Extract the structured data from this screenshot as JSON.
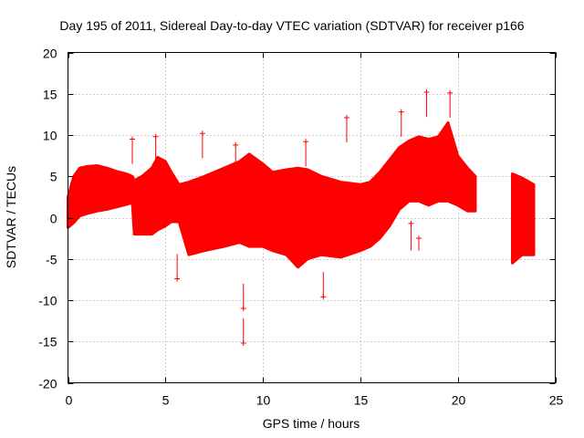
{
  "chart_data": {
    "type": "scatter",
    "title": "Day 195 of 2011, Sidereal Day-to-day VTEC variation (SDTVAR) for receiver p166",
    "xlabel": "GPS time / hours",
    "ylabel": "SDTVAR / TECUs",
    "xlim": [
      0,
      25
    ],
    "ylim": [
      -20,
      20
    ],
    "xticks": [
      0,
      5,
      10,
      15,
      20,
      25
    ],
    "yticks": [
      -20,
      -15,
      -10,
      -5,
      0,
      5,
      10,
      15,
      20
    ],
    "grid": true,
    "marker": "+",
    "series_color": "#ff0000",
    "series": [
      {
        "name": "SDTVAR",
        "envelope": [
          {
            "x": 0.0,
            "low": -1.2,
            "high": 2.5
          },
          {
            "x": 0.3,
            "low": -0.6,
            "high": 5.0
          },
          {
            "x": 0.6,
            "low": 0.2,
            "high": 6.0
          },
          {
            "x": 1.0,
            "low": 0.5,
            "high": 6.2
          },
          {
            "x": 1.5,
            "low": 0.8,
            "high": 6.3
          },
          {
            "x": 2.0,
            "low": 1.0,
            "high": 6.0
          },
          {
            "x": 2.5,
            "low": 1.3,
            "high": 5.6
          },
          {
            "x": 3.0,
            "low": 1.6,
            "high": 5.3
          },
          {
            "x": 3.3,
            "low": 1.8,
            "high": 5.0
          },
          {
            "x": 3.4,
            "low": -2.0,
            "high": 4.5
          },
          {
            "x": 3.8,
            "low": -2.0,
            "high": 5.0
          },
          {
            "x": 4.3,
            "low": -2.0,
            "high": 6.0
          },
          {
            "x": 4.6,
            "low": -1.5,
            "high": 7.3
          },
          {
            "x": 5.0,
            "low": -1.0,
            "high": 6.8
          },
          {
            "x": 5.3,
            "low": -0.5,
            "high": 5.5
          },
          {
            "x": 5.7,
            "low": -0.5,
            "high": 4.0
          },
          {
            "x": 6.2,
            "low": -4.5,
            "high": 4.3
          },
          {
            "x": 7.0,
            "low": -4.0,
            "high": 5.0
          },
          {
            "x": 8.0,
            "low": -3.5,
            "high": 6.0
          },
          {
            "x": 8.8,
            "low": -3.0,
            "high": 6.8
          },
          {
            "x": 9.3,
            "low": -3.5,
            "high": 7.7
          },
          {
            "x": 10.0,
            "low": -3.5,
            "high": 6.5
          },
          {
            "x": 10.5,
            "low": -4.0,
            "high": 5.5
          },
          {
            "x": 11.2,
            "low": -4.5,
            "high": 5.8
          },
          {
            "x": 11.8,
            "low": -6.0,
            "high": 6.0
          },
          {
            "x": 12.3,
            "low": -5.0,
            "high": 5.8
          },
          {
            "x": 13.0,
            "low": -4.5,
            "high": 5.0
          },
          {
            "x": 14.0,
            "low": -4.8,
            "high": 4.3
          },
          {
            "x": 15.0,
            "low": -4.0,
            "high": 4.0
          },
          {
            "x": 15.5,
            "low": -3.5,
            "high": 4.3
          },
          {
            "x": 16.0,
            "low": -2.5,
            "high": 5.5
          },
          {
            "x": 16.5,
            "low": -1.0,
            "high": 7.0
          },
          {
            "x": 17.0,
            "low": 1.0,
            "high": 8.5
          },
          {
            "x": 17.5,
            "low": 2.0,
            "high": 9.3
          },
          {
            "x": 18.0,
            "low": 2.0,
            "high": 9.8
          },
          {
            "x": 18.5,
            "low": 1.5,
            "high": 9.5
          },
          {
            "x": 19.0,
            "low": 2.0,
            "high": 9.8
          },
          {
            "x": 19.5,
            "low": 2.0,
            "high": 11.5
          },
          {
            "x": 20.0,
            "low": 1.5,
            "high": 7.5
          },
          {
            "x": 20.5,
            "low": 0.8,
            "high": 6.0
          },
          {
            "x": 20.9,
            "low": 0.8,
            "high": 5.0
          },
          {
            "x": 22.8,
            "low": -5.5,
            "high": 5.3
          },
          {
            "x": 23.3,
            "low": -4.5,
            "high": 4.8
          },
          {
            "x": 23.9,
            "low": -4.5,
            "high": 4.0
          }
        ],
        "gaps": [
          [
            20.9,
            22.8
          ]
        ],
        "outliers": [
          {
            "x": 3.3,
            "y": 9.5
          },
          {
            "x": 4.5,
            "y": 9.8
          },
          {
            "x": 5.6,
            "y": -7.4
          },
          {
            "x": 6.9,
            "y": 10.2
          },
          {
            "x": 8.6,
            "y": 8.8
          },
          {
            "x": 9.0,
            "y": -15.2
          },
          {
            "x": 9.0,
            "y": -11.0
          },
          {
            "x": 12.2,
            "y": 9.2
          },
          {
            "x": 13.1,
            "y": -9.6
          },
          {
            "x": 14.3,
            "y": 12.1
          },
          {
            "x": 17.1,
            "y": 12.8
          },
          {
            "x": 17.6,
            "y": -0.7
          },
          {
            "x": 18.0,
            "y": -2.5
          },
          {
            "x": 18.4,
            "y": 15.2
          },
          {
            "x": 19.6,
            "y": 15.1
          }
        ]
      }
    ]
  }
}
